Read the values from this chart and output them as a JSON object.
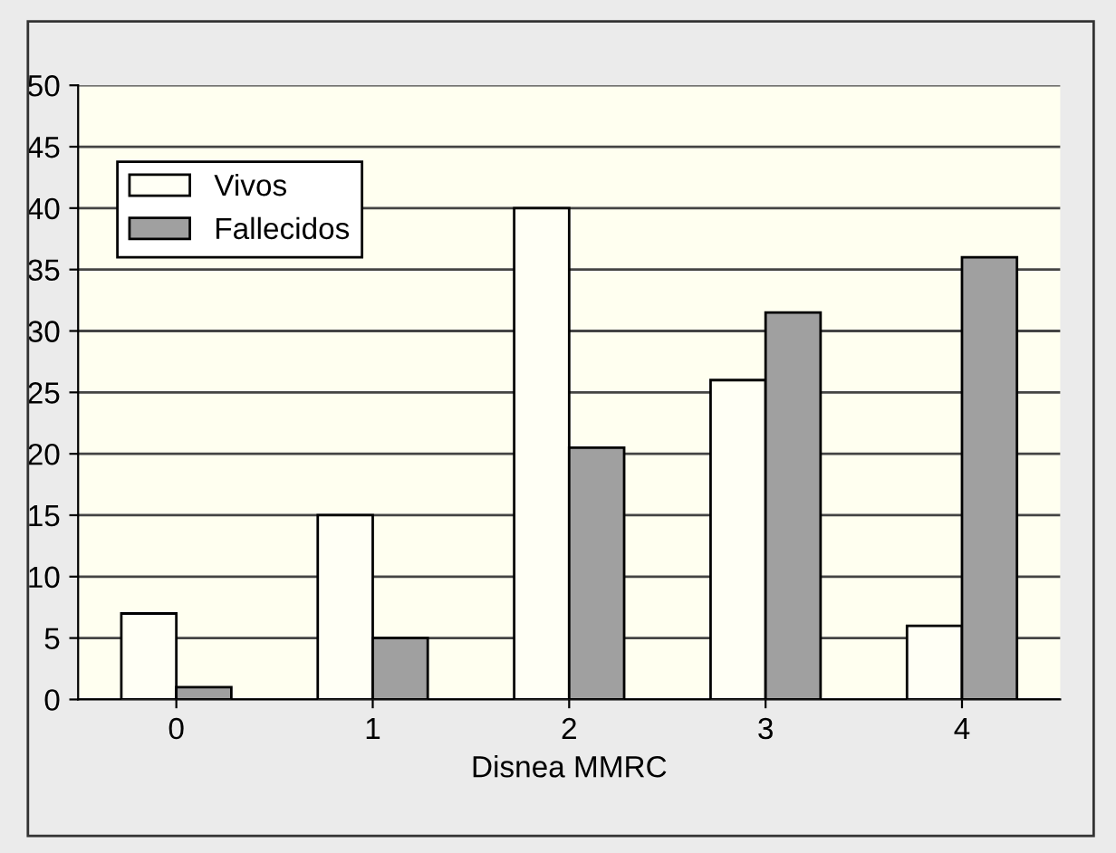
{
  "chart_data": {
    "type": "bar",
    "xlabel": "Disnea MMRC",
    "categories": [
      "0",
      "1",
      "2",
      "3",
      "4"
    ],
    "series": [
      {
        "name": "Vivos",
        "color": "#fffff5",
        "values": [
          7,
          15,
          40,
          26,
          6
        ]
      },
      {
        "name": "Fallecidos",
        "color": "#a0a0a0",
        "values": [
          1,
          5,
          20.5,
          31.5,
          36
        ]
      }
    ],
    "ylim": [
      0,
      50
    ],
    "yticks": [
      0,
      5,
      10,
      15,
      20,
      25,
      30,
      35,
      40,
      45,
      50
    ],
    "grid": "y",
    "legend": "top left"
  }
}
